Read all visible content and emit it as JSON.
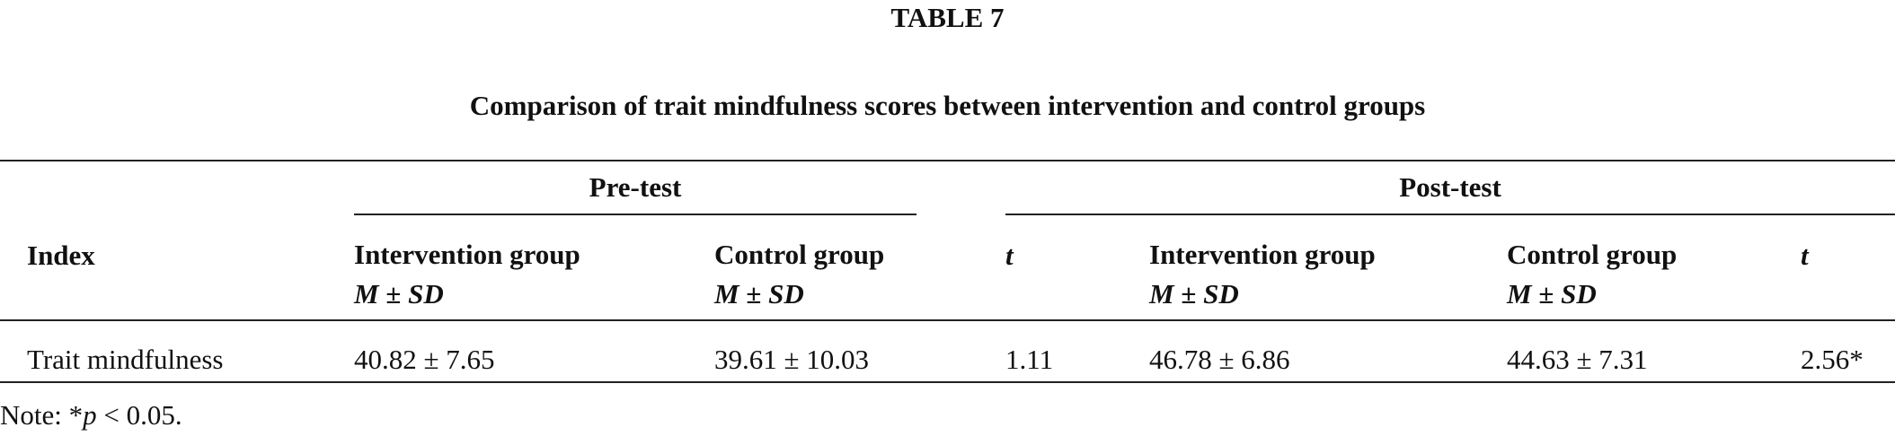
{
  "table": {
    "label": "TABLE 7",
    "caption": "Comparison of trait mindfulness scores between intervention and control groups",
    "groups": [
      "Pre-test",
      "Post-test"
    ],
    "header": [
      {
        "name": "Index"
      },
      {
        "name": "Intervention group",
        "stat": "M ± SD"
      },
      {
        "name": "Control group",
        "stat": "M ± SD"
      },
      {
        "name": "t"
      },
      {
        "name": "Intervention group",
        "stat": "M ± SD"
      },
      {
        "name": "Control group",
        "stat": "M ± SD"
      },
      {
        "name": "t"
      }
    ],
    "rows": [
      [
        "Trait mindfulness",
        "40.82 ± 7.65",
        "39.61 ± 10.03",
        "1.11",
        "46.78 ± 6.86",
        "44.63 ± 7.31",
        "2.56*"
      ]
    ],
    "note": {
      "prefix": "Note: *",
      "italic": "p",
      "suffix": " < 0.05."
    }
  }
}
